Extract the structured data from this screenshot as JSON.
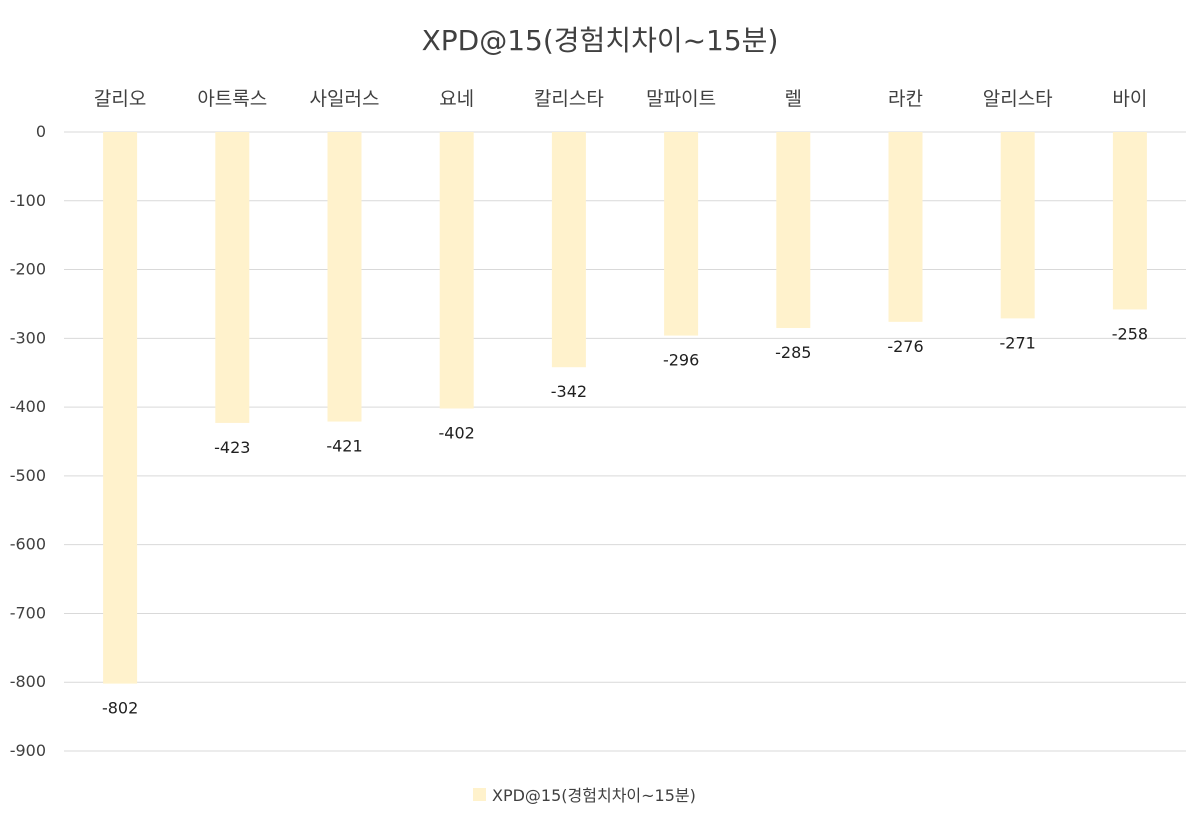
{
  "chart_data": {
    "type": "bar",
    "title": "XPD@15(경험치차이~15분)",
    "categories": [
      "갈리오",
      "아트록스",
      "사일러스",
      "요네",
      "칼리스타",
      "말파이트",
      "렐",
      "라칸",
      "알리스타",
      "바이"
    ],
    "series": [
      {
        "name": "XPD@15(경험치차이~15분)",
        "values": [
          -802,
          -423,
          -421,
          -402,
          -342,
          -296,
          -285,
          -276,
          -271,
          -258
        ],
        "color": "#fff2cc"
      }
    ],
    "ylim": [
      -900,
      0
    ],
    "yticks": [
      0,
      -100,
      -200,
      -300,
      -400,
      -500,
      -600,
      -700,
      -800,
      -900
    ],
    "ytick_labels": [
      "0",
      "-100",
      "-200",
      "-300",
      "-400",
      "-500",
      "-600",
      "-700",
      "-800",
      "-900"
    ],
    "xlabel": "",
    "ylabel": "",
    "grid": true,
    "legend": "bottom-center",
    "category_axis_position": "top",
    "data_labels": true
  }
}
